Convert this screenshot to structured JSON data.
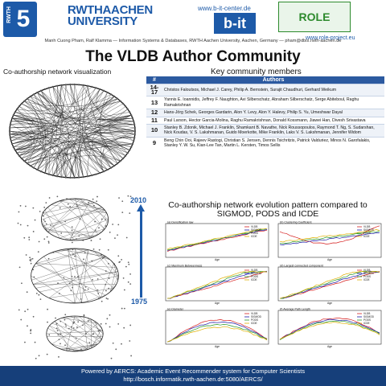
{
  "header": {
    "logo_text": "RWTH",
    "logo_number": "5",
    "uni_line1": "RWTHAACHEN",
    "uni_line2": "UNIVERSITY",
    "bit_url": "www.b-it-center.de",
    "bit_logo": "b-it",
    "role_logo": "ROLE",
    "role_url": "www.role-project.eu",
    "authors": "Manh Cuong Pham, Ralf Klamma — Information Systems & Databases, RWTH Aachen University, Aachen, Germany — pham@dbis.rwth-aachen.de"
  },
  "title": "The VLDB Author Community",
  "left_section_title": "Co-authorship network visualization",
  "right_section_title": "Key community members",
  "table": {
    "headers": [
      "#",
      "Authors"
    ],
    "rows": [
      {
        "n": "14-17",
        "authors": "Christos Faloutsos, Michael J. Carey, Philip A. Bernstein, Surajit Chaudhuri, Gerhard Weikum"
      },
      {
        "n": "13",
        "authors": "Yannis E. Ioannidis, Jeffrey F. Naughton, Avi Silberschatz, Abraham Silberschatz, Serge Abiteboul, Raghu Ramakrishnan"
      },
      {
        "n": "12",
        "authors": "Hans-Jörg Schek, Georges Gardarin, Alon Y. Levy, Alon Y. Halevy, Philip S. Yu, Umeshwar Dayal"
      },
      {
        "n": "11",
        "authors": "Paul Larson, Hector Garcia-Molina, Raghu Ramakrishnan, Donald Kossmann, Jiawei Han, Divesh Srivastava"
      },
      {
        "n": "10",
        "authors": "Stanley B. Zdonik, Michael J. Franklin, Shamkant B. Navathe, Nick Roussopoulos, Raymond T. Ng, S. Sudarshan, Nick Koudas, V. S. Lakshmanan, Guido Moerkotte, Mike Franklin, Laks V. S. Lakshmanan, Jennifer Widom"
      },
      {
        "n": "9",
        "authors": "Beng Chin Ooi, Rajeev Rastogi, Christian S. Jensen, Dennis Tsichritzis, Patrick Valduriez, Minos N. Garofalakis, Stanley Y. W. Su, Kian-Lee Tan, Martin L. Kersten, Timos Sellis"
      }
    ]
  },
  "timeline": {
    "top": "2010",
    "bottom": "1975"
  },
  "evolution_title_line1": "Co-authorship network evolution pattern compared to",
  "evolution_title_line2": "SIGMOD, PODS and ICDE",
  "plot_titles": [
    "(a) Densification law",
    "(b) Clustering Coefficient",
    "(c) Maximum Betweenness",
    "(d) Largest connected component",
    "(e) Diameter",
    "(f) Average Path Length"
  ],
  "plot_xlabel": "Age",
  "legend": [
    "VLDB",
    "SIGMOD",
    "PODS",
    "ICDE"
  ],
  "colors": {
    "VLDB": "#d62020",
    "SIGMOD": "#1a1aa8",
    "PODS": "#2a9a2a",
    "ICDE": "#e0b000",
    "accent": "#1d5aa8",
    "footer": "#163f7a"
  },
  "footer_line1": "Powered by AERCS: Academic Event Recommender system for Computer Scientists",
  "footer_line2": "http://bosch.informatik.rwth-aachen.de:5080/AERCS/"
}
